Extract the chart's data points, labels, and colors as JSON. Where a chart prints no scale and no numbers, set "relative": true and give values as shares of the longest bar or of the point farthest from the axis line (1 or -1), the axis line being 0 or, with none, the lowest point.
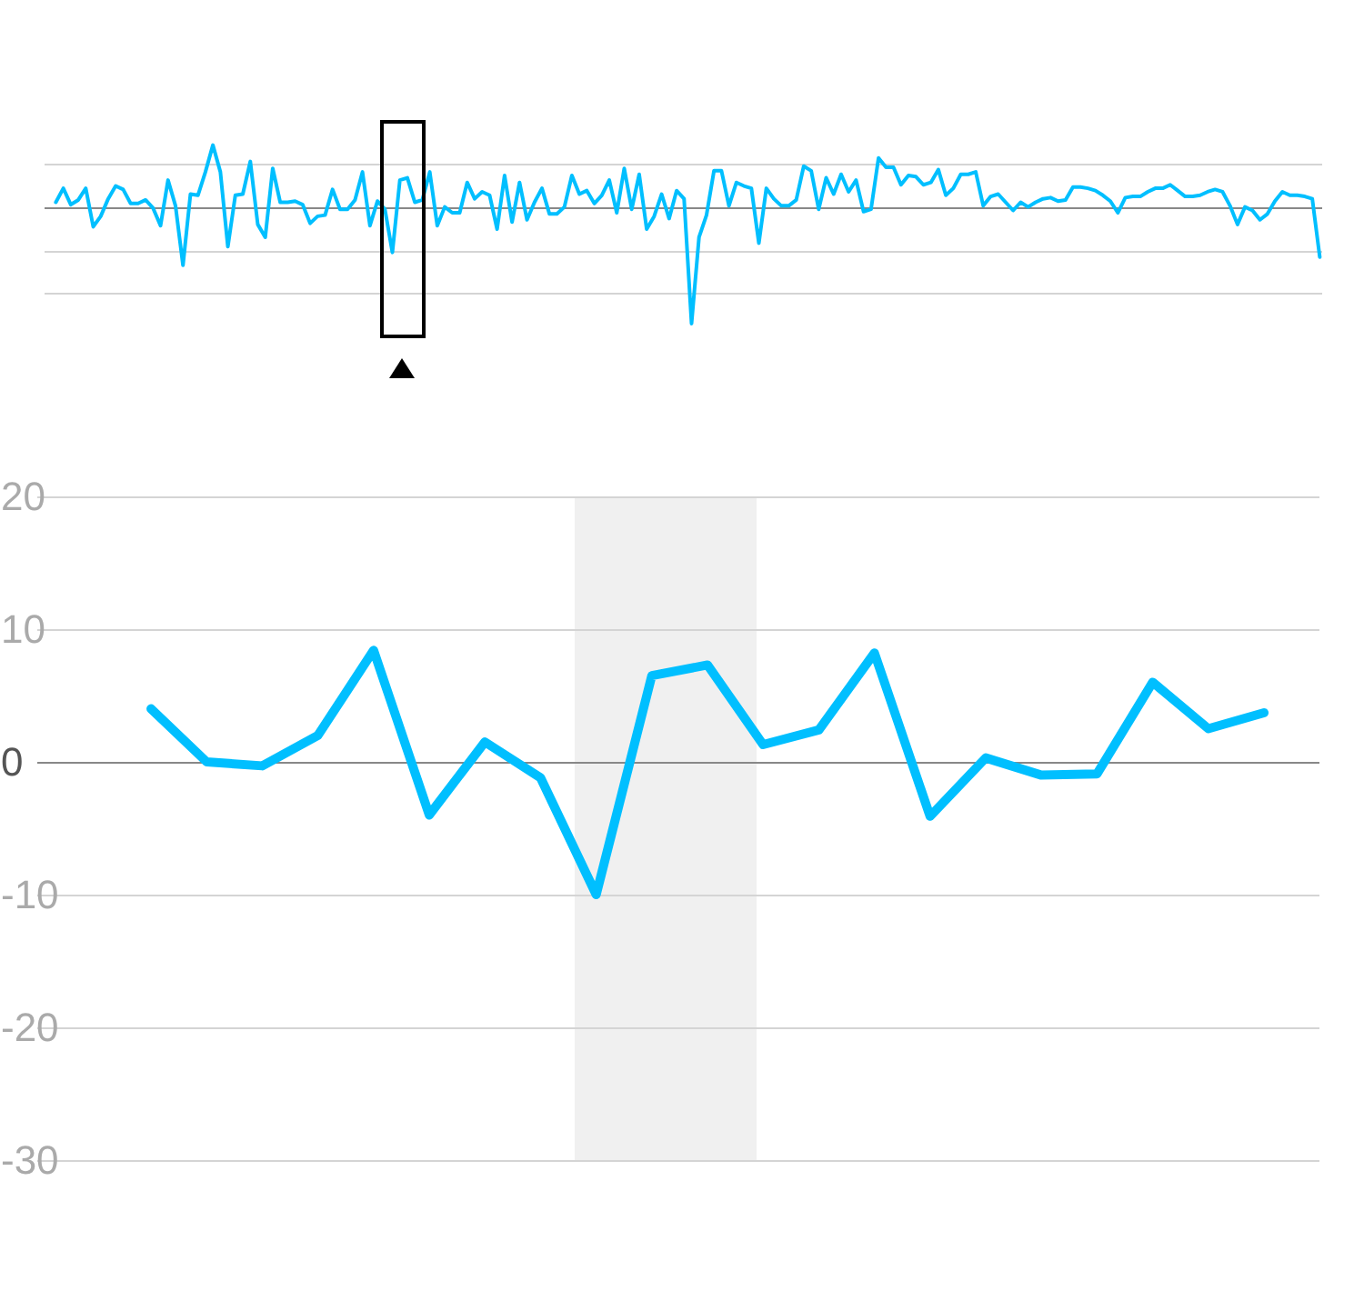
{
  "chart_data": [
    {
      "type": "line",
      "relative": true,
      "grid": "y",
      "tick_labels": false,
      "categories": [
        null,
        null,
        null,
        null,
        null,
        null,
        null,
        null,
        null,
        null,
        null,
        null,
        null,
        null,
        null,
        null,
        null,
        null,
        null,
        null,
        null,
        null,
        null,
        null,
        null,
        null,
        null,
        null,
        null,
        null,
        null,
        null,
        null,
        null,
        null,
        null,
        null,
        null,
        null,
        null,
        null,
        null,
        null,
        null,
        null,
        null,
        null,
        null,
        null,
        null,
        null,
        null,
        null,
        null,
        null,
        null,
        null,
        null,
        null,
        null,
        null,
        null,
        null,
        null,
        null,
        null,
        null,
        null,
        null,
        null,
        null,
        null,
        null,
        null,
        null,
        null,
        null,
        null,
        null,
        null,
        null,
        null,
        null,
        null,
        null,
        null,
        null,
        null,
        null,
        null,
        null,
        null,
        null,
        null,
        null,
        null,
        null,
        null,
        null,
        null,
        null,
        null,
        null,
        null,
        null,
        null,
        null,
        null,
        null,
        null,
        null,
        null,
        null,
        null,
        null,
        null,
        null,
        null,
        null,
        null,
        null,
        null,
        null,
        null,
        null,
        null,
        null,
        null,
        null,
        null,
        null,
        null,
        null,
        null,
        null,
        null,
        null,
        null,
        null,
        null,
        null,
        null,
        null,
        null,
        null,
        null,
        null,
        null,
        null,
        null,
        null,
        null,
        null,
        null,
        null,
        null,
        null,
        null,
        null,
        null,
        null,
        null,
        null,
        null,
        null,
        null,
        null,
        null,
        null,
        null
      ],
      "series": [
        {
          "color": "#00bfff",
          "values": [
            0.04,
            0.16,
            0.02,
            0.06,
            0.16,
            -0.17,
            -0.08,
            0.07,
            0.18,
            0.15,
            0.03,
            0.03,
            0.06,
            -0.01,
            -0.16,
            0.23,
            0.01,
            -0.5,
            0.11,
            0.1,
            0.3,
            0.53,
            0.3,
            -0.34,
            0.1,
            0.11,
            0.39,
            -0.15,
            -0.26,
            0.33,
            0.04,
            0.04,
            0.05,
            0.02,
            -0.14,
            -0.08,
            -0.07,
            0.15,
            -0.02,
            -0.02,
            0.06,
            0.3,
            -0.16,
            0.05,
            -0.02,
            -0.39,
            0.23,
            0.25,
            0.04,
            0.06,
            0.3,
            -0.16,
            0,
            -0.05,
            -0.05,
            0.21,
            0.07,
            0.13,
            0.1,
            -0.19,
            0.27,
            -0.13,
            0.21,
            -0.11,
            0.04,
            0.16,
            -0.06,
            -0.06,
            0,
            0.27,
            0.11,
            0.14,
            0.03,
            0.1,
            0.23,
            -0.05,
            0.33,
            -0.02,
            0.28,
            -0.19,
            -0.08,
            0.11,
            -0.1,
            0.14,
            0.07,
            -1,
            -0.26,
            -0.07,
            0.31,
            0.31,
            0.01,
            0.21,
            0.18,
            0.16,
            -0.31,
            0.16,
            0.07,
            0.01,
            0.01,
            0.06,
            0.35,
            0.31,
            -0.02,
            0.25,
            0.11,
            0.28,
            0.13,
            0.23,
            -0.04,
            -0.02,
            0.42,
            0.34,
            0.34,
            0.19,
            0.27,
            0.26,
            0.19,
            0.21,
            0.32,
            0.1,
            0.16,
            0.28,
            0.28,
            0.3,
            0.01,
            0.09,
            0.11,
            0.04,
            -0.03,
            0.04,
            0,
            0.04,
            0.07,
            0.08,
            0.05,
            0.06,
            0.17,
            0.17,
            0.16,
            0.14,
            0.1,
            0.05,
            -0.05,
            0.08,
            0.09,
            0.09,
            0.13,
            0.16,
            0.16,
            0.19,
            0.14,
            0.09,
            0.09,
            0.1,
            0.13,
            0.15,
            0.13,
            0.01,
            -0.15,
            0,
            -0.03,
            -0.11,
            -0.06,
            0.05,
            0.13,
            0.1,
            0.1,
            0.09,
            0.07,
            -0.43
          ]
        }
      ]
    },
    {
      "type": "line",
      "grid": "y",
      "tick_labels": "y",
      "ylim": [
        -30,
        20
      ],
      "yticks": [
        -30,
        -20,
        -10,
        0,
        10,
        20
      ],
      "categories": [
        null,
        null,
        null,
        null,
        null,
        null,
        null,
        null,
        null,
        null,
        null,
        null,
        null,
        null,
        null,
        null,
        null,
        null,
        null,
        null,
        null
      ],
      "series": [
        {
          "color": "#00bfff",
          "values": [
            4,
            0,
            -0.3,
            2,
            8.4,
            -4,
            1.5,
            -1.2,
            -10,
            6.5,
            7.3,
            1.3,
            2.4,
            8.2,
            -4.1,
            0.3,
            -1,
            -0.9,
            6,
            2.5,
            3.7
          ]
        }
      ]
    }
  ]
}
